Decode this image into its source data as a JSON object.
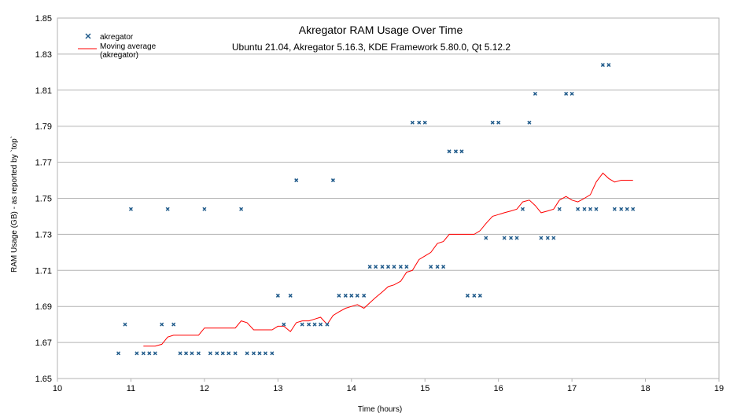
{
  "chart_data": {
    "type": "scatter",
    "title": "Akregator RAM Usage Over Time",
    "subtitle": "Ubuntu 21.04, Akregator 5.16.3, KDE Framework 5.80.0, Qt 5.12.2",
    "xlabel": "Time (hours)",
    "ylabel": "RAM Usage (GB) - as reported by `top`",
    "xlim": [
      10,
      19
    ],
    "ylim": [
      1.65,
      1.85
    ],
    "x_ticks": [
      "10",
      "11",
      "12",
      "13",
      "14",
      "15",
      "16",
      "17",
      "18",
      "19"
    ],
    "y_ticks": [
      "1.65",
      "1.67",
      "1.69",
      "1.71",
      "1.73",
      "1.75",
      "1.77",
      "1.79",
      "1.81",
      "1.83",
      "1.85"
    ],
    "grid": "horizontal",
    "legend": "top-left",
    "colors": {
      "scatter": "#1f5a8a",
      "moving_average": "#ff0000",
      "grid": "#b3b3b3"
    },
    "series": [
      {
        "name": "akregator",
        "kind": "scatter",
        "x": [
          10.83,
          10.92,
          11.0,
          11.08,
          11.17,
          11.25,
          11.33,
          11.42,
          11.5,
          11.58,
          11.67,
          11.75,
          11.83,
          11.92,
          12.0,
          12.08,
          12.17,
          12.25,
          12.33,
          12.42,
          12.5,
          12.58,
          12.67,
          12.75,
          12.83,
          12.92,
          13.0,
          13.08,
          13.17,
          13.25,
          13.33,
          13.42,
          13.5,
          13.58,
          13.67,
          13.75,
          13.83,
          13.92,
          14.0,
          14.08,
          14.17,
          14.25,
          14.33,
          14.42,
          14.5,
          14.58,
          14.67,
          14.75,
          14.83,
          14.92,
          15.0,
          15.08,
          15.17,
          15.25,
          15.33,
          15.42,
          15.5,
          15.58,
          15.67,
          15.75,
          15.83,
          15.92,
          16.0,
          16.08,
          16.17,
          16.25,
          16.33,
          16.42,
          16.5,
          16.58,
          16.67,
          16.75,
          16.83,
          16.92,
          17.0,
          17.08,
          17.17,
          17.25,
          17.33,
          17.42,
          17.5,
          17.58,
          17.67,
          17.75,
          17.83
        ],
        "y": [
          1.664,
          1.68,
          1.744,
          1.664,
          1.664,
          1.664,
          1.664,
          1.68,
          1.744,
          1.68,
          1.664,
          1.664,
          1.664,
          1.664,
          1.744,
          1.664,
          1.664,
          1.664,
          1.664,
          1.664,
          1.744,
          1.664,
          1.664,
          1.664,
          1.664,
          1.664,
          1.696,
          1.68,
          1.696,
          1.76,
          1.68,
          1.68,
          1.68,
          1.68,
          1.68,
          1.76,
          1.696,
          1.696,
          1.696,
          1.696,
          1.696,
          1.712,
          1.712,
          1.712,
          1.712,
          1.712,
          1.712,
          1.712,
          1.792,
          1.792,
          1.792,
          1.712,
          1.712,
          1.712,
          1.776,
          1.776,
          1.776,
          1.696,
          1.696,
          1.696,
          1.728,
          1.792,
          1.792,
          1.728,
          1.728,
          1.728,
          1.744,
          1.792,
          1.808,
          1.728,
          1.728,
          1.728,
          1.744,
          1.808,
          1.808,
          1.744,
          1.744,
          1.744,
          1.744,
          1.824,
          1.824,
          1.744,
          1.744,
          1.744,
          1.744
        ]
      },
      {
        "name": "Moving average (akregator)",
        "kind": "line",
        "x": [
          11.17,
          11.25,
          11.33,
          11.42,
          11.5,
          11.58,
          11.67,
          11.75,
          11.83,
          11.92,
          12.0,
          12.08,
          12.17,
          12.25,
          12.33,
          12.42,
          12.5,
          12.58,
          12.67,
          12.75,
          12.83,
          12.92,
          13.0,
          13.08,
          13.17,
          13.25,
          13.33,
          13.42,
          13.5,
          13.58,
          13.67,
          13.75,
          13.83,
          13.92,
          14.0,
          14.08,
          14.17,
          14.25,
          14.33,
          14.42,
          14.5,
          14.58,
          14.67,
          14.75,
          14.83,
          14.92,
          15.0,
          15.08,
          15.17,
          15.25,
          15.33,
          15.42,
          15.5,
          15.58,
          15.67,
          15.75,
          15.83,
          15.92,
          16.0,
          16.08,
          16.17,
          16.25,
          16.33,
          16.42,
          16.5,
          16.58,
          16.67,
          16.75,
          16.83,
          16.92,
          17.0,
          17.08,
          17.17,
          17.25,
          17.33,
          17.42,
          17.5,
          17.58,
          17.67,
          17.75,
          17.83
        ],
        "y": [
          1.668,
          1.668,
          1.668,
          1.669,
          1.673,
          1.674,
          1.674,
          1.674,
          1.674,
          1.674,
          1.678,
          1.678,
          1.678,
          1.678,
          1.678,
          1.678,
          1.682,
          1.681,
          1.677,
          1.677,
          1.677,
          1.677,
          1.679,
          1.679,
          1.676,
          1.681,
          1.682,
          1.682,
          1.683,
          1.684,
          1.68,
          1.685,
          1.687,
          1.689,
          1.69,
          1.691,
          1.689,
          1.692,
          1.695,
          1.698,
          1.701,
          1.702,
          1.704,
          1.709,
          1.71,
          1.716,
          1.718,
          1.72,
          1.725,
          1.726,
          1.73,
          1.73,
          1.73,
          1.73,
          1.73,
          1.732,
          1.736,
          1.74,
          1.741,
          1.742,
          1.743,
          1.744,
          1.748,
          1.749,
          1.746,
          1.742,
          1.743,
          1.744,
          1.749,
          1.751,
          1.749,
          1.748,
          1.75,
          1.752,
          1.759,
          1.764,
          1.761,
          1.759,
          1.76,
          1.76,
          1.76
        ]
      }
    ],
    "legend_entries": [
      {
        "label": "akregator"
      },
      {
        "label_lines": [
          "Moving average",
          "(akregator)"
        ]
      }
    ]
  }
}
